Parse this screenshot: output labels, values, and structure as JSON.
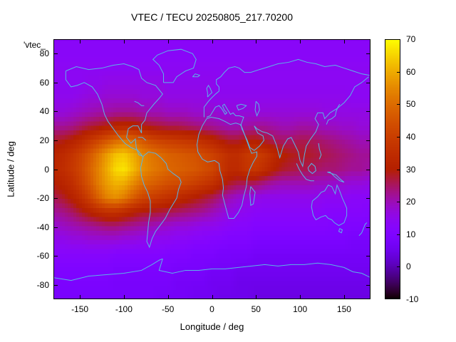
{
  "title": "VTEC / TECU 20250805_217.70200",
  "overlay_label": "'vtec_",
  "axes": {
    "xlabel": "Longitude / deg",
    "ylabel": "Latitude / deg",
    "xlim": [
      -180,
      180
    ],
    "ylim": [
      -90,
      90
    ],
    "xticks": [
      -150,
      -100,
      -50,
      0,
      50,
      100,
      150
    ],
    "yticks": [
      80,
      60,
      40,
      20,
      0,
      -20,
      -40,
      -60,
      -80
    ]
  },
  "colorbar": {
    "min": -10,
    "max": 70,
    "ticks": [
      70,
      60,
      50,
      40,
      30,
      20,
      10,
      0,
      -10
    ]
  },
  "colors": {
    "coastline": "#5ab6e6",
    "frame": "#000000",
    "text": "#000000",
    "background": "#ffffff"
  },
  "chart_data": {
    "type": "heatmap",
    "title": "VTEC / TECU 20250805_217.70200",
    "xlabel": "Longitude / deg",
    "ylabel": "Latitude / deg",
    "xlim": [
      -180,
      180
    ],
    "ylim": [
      -90,
      90
    ],
    "zlim": [
      -10,
      70
    ],
    "units": "TECU",
    "palette": "gnuplot rgbformulae 7,5,15 (black - violet - magenta - orange - yellow)",
    "legend": "none",
    "grid": false,
    "overlay": "world coastlines in light blue",
    "lons": [
      -180,
      -170,
      -160,
      -150,
      -140,
      -130,
      -120,
      -110,
      -100,
      -90,
      -80,
      -70,
      -60,
      -50,
      -40,
      -30,
      -20,
      -10,
      0,
      10,
      20,
      30,
      40,
      50,
      60,
      70,
      80,
      90,
      100,
      110,
      120,
      130,
      140,
      150,
      160,
      170,
      180
    ],
    "lats": [
      90,
      80,
      70,
      60,
      50,
      40,
      30,
      20,
      10,
      0,
      -10,
      -20,
      -30,
      -40,
      -50,
      -60,
      -70,
      -80,
      -90
    ],
    "values": [
      [
        13,
        13,
        13,
        13,
        13,
        13,
        13,
        13,
        13,
        13,
        13,
        13,
        13,
        13,
        13,
        13,
        13,
        13,
        13,
        13,
        13,
        13,
        13,
        13,
        13,
        13,
        13,
        13,
        13,
        13,
        13,
        13,
        13,
        13,
        13,
        13,
        13
      ],
      [
        13,
        13,
        13,
        13,
        13,
        13,
        13,
        13,
        13,
        13,
        13,
        13,
        13,
        13,
        13,
        13,
        13,
        13,
        13,
        13,
        13,
        13,
        13,
        13,
        13,
        13,
        13,
        13,
        13,
        13,
        13,
        13,
        13,
        13,
        13,
        13,
        13
      ],
      [
        14,
        14,
        14,
        14,
        14,
        14,
        14,
        14,
        14,
        14,
        14,
        14,
        14,
        14,
        14,
        14,
        14,
        14,
        14,
        14,
        14,
        14,
        14,
        14,
        14,
        14,
        14,
        14,
        14,
        14,
        14,
        14,
        14,
        14,
        14,
        14,
        14
      ],
      [
        14,
        14,
        14,
        14,
        15,
        15,
        16,
        16,
        16,
        16,
        16,
        16,
        16,
        15,
        15,
        15,
        15,
        15,
        15,
        14,
        14,
        14,
        14,
        14,
        14,
        14,
        14,
        14,
        14,
        14,
        14,
        14,
        14,
        14,
        14,
        14,
        14
      ],
      [
        15,
        15,
        15,
        16,
        17,
        17,
        18,
        18,
        18,
        18,
        17,
        17,
        17,
        16,
        16,
        16,
        16,
        16,
        15,
        15,
        15,
        15,
        15,
        15,
        15,
        15,
        15,
        15,
        15,
        15,
        15,
        15,
        15,
        15,
        14,
        14,
        14
      ],
      [
        17,
        17,
        18,
        19,
        20,
        21,
        21,
        22,
        22,
        22,
        21,
        20,
        20,
        19,
        19,
        19,
        18,
        18,
        18,
        17,
        17,
        17,
        17,
        17,
        17,
        17,
        17,
        17,
        17,
        17,
        17,
        16,
        16,
        16,
        16,
        16,
        16
      ],
      [
        22,
        22,
        23,
        25,
        27,
        28,
        30,
        32,
        33,
        32,
        30,
        28,
        27,
        26,
        26,
        25,
        24,
        23,
        22,
        21,
        20,
        20,
        21,
        22,
        22,
        21,
        20,
        20,
        21,
        21,
        20,
        19,
        19,
        18,
        18,
        17,
        17
      ],
      [
        28,
        29,
        31,
        34,
        38,
        42,
        46,
        50,
        52,
        50,
        46,
        43,
        41,
        40,
        39,
        38,
        37,
        35,
        33,
        30,
        28,
        28,
        30,
        30,
        28,
        26,
        25,
        25,
        26,
        26,
        25,
        24,
        23,
        22,
        21,
        20,
        20
      ],
      [
        32,
        34,
        37,
        41,
        46,
        52,
        58,
        63,
        64,
        60,
        55,
        52,
        50,
        48,
        47,
        46,
        45,
        43,
        41,
        38,
        35,
        35,
        38,
        40,
        38,
        34,
        31,
        29,
        28,
        28,
        27,
        26,
        25,
        24,
        23,
        22,
        22
      ],
      [
        33,
        35,
        38,
        42,
        48,
        54,
        60,
        66,
        67,
        62,
        56,
        53,
        51,
        49,
        48,
        47,
        46,
        44,
        42,
        38,
        34,
        34,
        37,
        38,
        35,
        31,
        28,
        27,
        26,
        26,
        25,
        24,
        24,
        23,
        22,
        22,
        21
      ],
      [
        30,
        32,
        35,
        40,
        46,
        53,
        58,
        61,
        60,
        55,
        50,
        48,
        46,
        44,
        43,
        42,
        40,
        38,
        36,
        32,
        28,
        26,
        26,
        25,
        23,
        21,
        20,
        20,
        20,
        20,
        19,
        19,
        18,
        18,
        17,
        17,
        16
      ],
      [
        26,
        28,
        31,
        35,
        41,
        48,
        54,
        56,
        53,
        47,
        42,
        40,
        38,
        36,
        34,
        32,
        30,
        28,
        26,
        23,
        20,
        18,
        17,
        16,
        15,
        15,
        15,
        15,
        15,
        15,
        15,
        14,
        14,
        14,
        13,
        13,
        13
      ],
      [
        22,
        23,
        25,
        28,
        31,
        34,
        36,
        36,
        34,
        31,
        29,
        28,
        27,
        26,
        25,
        24,
        23,
        22,
        20,
        18,
        16,
        15,
        14,
        13,
        13,
        13,
        13,
        13,
        13,
        13,
        13,
        12,
        12,
        12,
        12,
        12,
        11
      ],
      [
        18,
        19,
        20,
        21,
        22,
        23,
        24,
        24,
        23,
        22,
        21,
        20,
        19,
        18,
        17,
        17,
        16,
        15,
        15,
        14,
        13,
        12,
        12,
        11,
        11,
        11,
        11,
        11,
        11,
        11,
        11,
        11,
        10,
        10,
        10,
        10,
        10
      ],
      [
        15,
        15,
        16,
        16,
        17,
        17,
        17,
        17,
        16,
        16,
        15,
        15,
        14,
        14,
        13,
        13,
        12,
        12,
        11,
        11,
        10,
        10,
        10,
        9,
        9,
        9,
        9,
        9,
        9,
        9,
        9,
        9,
        9,
        9,
        8,
        8,
        8
      ],
      [
        12,
        12,
        12,
        12,
        12,
        12,
        12,
        11,
        11,
        11,
        11,
        11,
        11,
        10,
        10,
        10,
        9,
        9,
        9,
        8,
        8,
        8,
        8,
        7,
        7,
        7,
        7,
        7,
        7,
        7,
        7,
        7,
        7,
        7,
        7,
        7,
        7
      ],
      [
        10,
        10,
        10,
        10,
        10,
        10,
        10,
        9,
        9,
        9,
        9,
        9,
        9,
        9,
        8,
        8,
        8,
        8,
        7,
        7,
        7,
        6,
        6,
        6,
        6,
        6,
        6,
        6,
        6,
        6,
        6,
        6,
        6,
        6,
        6,
        6,
        6
      ],
      [
        9,
        9,
        9,
        9,
        9,
        9,
        9,
        8,
        8,
        8,
        8,
        8,
        8,
        8,
        7,
        7,
        7,
        7,
        6,
        6,
        6,
        5,
        5,
        5,
        5,
        5,
        5,
        5,
        5,
        5,
        5,
        5,
        5,
        5,
        5,
        5,
        5
      ],
      [
        8,
        8,
        8,
        8,
        8,
        8,
        8,
        8,
        8,
        8,
        8,
        8,
        7,
        7,
        7,
        7,
        6,
        6,
        6,
        5,
        5,
        5,
        5,
        4,
        4,
        4,
        4,
        4,
        4,
        4,
        4,
        4,
        4,
        4,
        4,
        4,
        4
      ]
    ]
  }
}
